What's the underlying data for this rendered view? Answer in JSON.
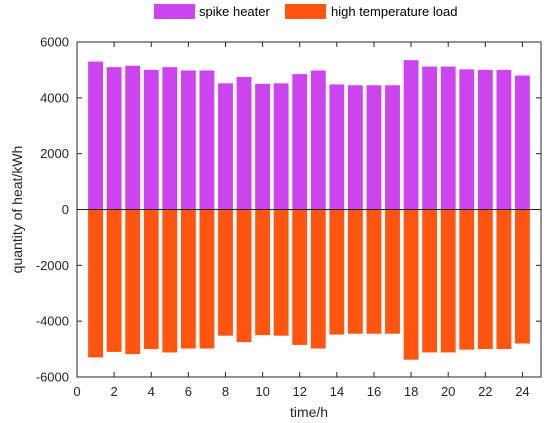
{
  "chart_data": {
    "type": "bar",
    "xlabel": "time/h",
    "ylabel": "quantity of heat/kWh",
    "xlim": [
      0,
      25
    ],
    "ylim": [
      -6000,
      6000
    ],
    "xticks": [
      0,
      2,
      4,
      6,
      8,
      10,
      12,
      14,
      16,
      18,
      20,
      22,
      24
    ],
    "yticks": [
      -6000,
      -4000,
      -2000,
      0,
      2000,
      4000,
      6000
    ],
    "categories": [
      1,
      2,
      3,
      4,
      5,
      6,
      7,
      8,
      9,
      10,
      11,
      12,
      13,
      14,
      15,
      16,
      17,
      18,
      19,
      20,
      21,
      22,
      23,
      24
    ],
    "series": [
      {
        "name": "spike heater",
        "color": "#CC44EE",
        "values": [
          5300,
          5100,
          5150,
          5000,
          5100,
          4980,
          4980,
          4520,
          4750,
          4500,
          4520,
          4850,
          4980,
          4480,
          4450,
          4450,
          4450,
          5350,
          5120,
          5120,
          5020,
          5000,
          5000,
          4800
        ]
      },
      {
        "name": "high temperature load",
        "color": "#FF5511",
        "values": [
          -5300,
          -5100,
          -5180,
          -5000,
          -5120,
          -4980,
          -4980,
          -4520,
          -4750,
          -4500,
          -4520,
          -4850,
          -4980,
          -4480,
          -4450,
          -4450,
          -4450,
          -5380,
          -5120,
          -5120,
          -5020,
          -5000,
          -5000,
          -4800
        ]
      }
    ],
    "legend": "top-center",
    "grid": false,
    "box": true
  }
}
